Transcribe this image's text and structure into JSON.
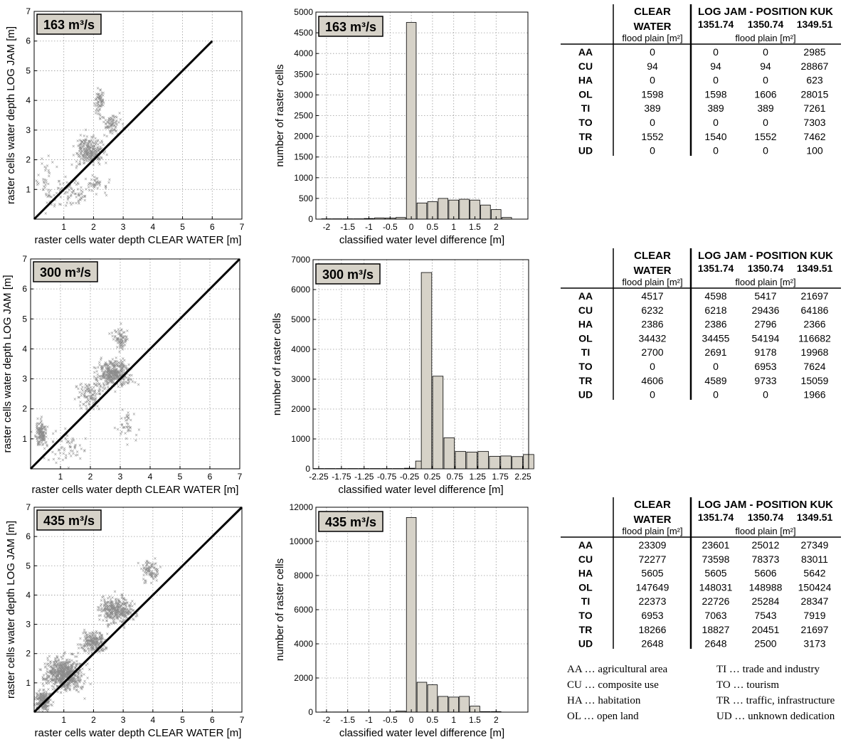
{
  "panels": [
    {
      "flow_label": "163 m³/s",
      "scatter": {
        "type": "scatter",
        "xlabel": "raster cells water depth CLEAR WATER [m]",
        "ylabel": "raster cells water depth LOG JAM [m]",
        "xlim": [
          0,
          7
        ],
        "ylim": [
          0,
          7
        ],
        "xticks": [
          "1",
          "2",
          "3",
          "4",
          "5",
          "6",
          "7"
        ],
        "yticks": [
          "1",
          "2",
          "3",
          "4",
          "5",
          "6",
          "7"
        ],
        "identity_line_to": 6,
        "grid": true
      },
      "histogram": {
        "type": "bar",
        "xlabel": "classified water level difference [m]",
        "ylabel": "number of raster cells",
        "xlim": [
          -2.25,
          2.75
        ],
        "ylim": [
          0,
          5000
        ],
        "yticks": [
          0,
          500,
          1000,
          1500,
          2000,
          2500,
          3000,
          3500,
          4000,
          4500,
          5000
        ],
        "xtick_values": [
          -2,
          -1.5,
          -1,
          -0.5,
          0,
          0.5,
          1,
          1.5,
          2
        ],
        "xtick_labels": [
          "-2",
          "-1.5",
          "-1",
          "-0.5",
          "0",
          "0.5",
          "1",
          "1.5",
          "2"
        ],
        "bin_width": 0.25,
        "bins": [
          {
            "x": -2.0,
            "value": 8
          },
          {
            "x": -1.75,
            "value": 8
          },
          {
            "x": -1.5,
            "value": 8
          },
          {
            "x": -1.25,
            "value": 8
          },
          {
            "x": -1.0,
            "value": 15
          },
          {
            "x": -0.75,
            "value": 30
          },
          {
            "x": -0.5,
            "value": 25
          },
          {
            "x": -0.25,
            "value": 40
          },
          {
            "x": 0.0,
            "value": 4750
          },
          {
            "x": 0.25,
            "value": 390
          },
          {
            "x": 0.5,
            "value": 420
          },
          {
            "x": 0.75,
            "value": 500
          },
          {
            "x": 1.0,
            "value": 460
          },
          {
            "x": 1.25,
            "value": 480
          },
          {
            "x": 1.5,
            "value": 460
          },
          {
            "x": 1.75,
            "value": 340
          },
          {
            "x": 2.0,
            "value": 230
          },
          {
            "x": 2.25,
            "value": 40
          }
        ],
        "grid": true
      },
      "table": {
        "h1a": "CLEAR",
        "h1b": "WATER",
        "h1c": "flood plain [m²]",
        "h2": "LOG JAM - POSITION KUK",
        "positions": [
          "1351.74",
          "1350.74",
          "1349.51"
        ],
        "h2c": "flood plain [m²]",
        "rows": [
          {
            "code": "AA",
            "vals": [
              "0",
              "0",
              "0",
              "2985"
            ]
          },
          {
            "code": "CU",
            "vals": [
              "94",
              "94",
              "94",
              "28867"
            ]
          },
          {
            "code": "HA",
            "vals": [
              "0",
              "0",
              "0",
              "623"
            ]
          },
          {
            "code": "OL",
            "vals": [
              "1598",
              "1598",
              "1606",
              "28015"
            ]
          },
          {
            "code": "TI",
            "vals": [
              "389",
              "389",
              "389",
              "7261"
            ]
          },
          {
            "code": "TO",
            "vals": [
              "0",
              "0",
              "0",
              "7303"
            ]
          },
          {
            "code": "TR",
            "vals": [
              "1552",
              "1540",
              "1552",
              "7462"
            ]
          },
          {
            "code": "UD",
            "vals": [
              "0",
              "0",
              "0",
              "100"
            ]
          }
        ]
      }
    },
    {
      "flow_label": "300 m³/s",
      "scatter": {
        "type": "scatter",
        "xlabel": "raster cells water depth CLEAR WATER [m]",
        "ylabel": "raster cells water depth LOG JAM [m]",
        "xlim": [
          0,
          7
        ],
        "ylim": [
          0,
          7
        ],
        "xticks": [
          "1",
          "2",
          "3",
          "4",
          "5",
          "6",
          "7"
        ],
        "yticks": [
          "1",
          "2",
          "3",
          "4",
          "5",
          "6",
          "7"
        ],
        "identity_line_to": 7,
        "grid": true
      },
      "histogram": {
        "type": "bar",
        "xlabel": "classified water level difference [m]",
        "ylabel": "number of raster cells",
        "xlim": [
          -2.375,
          2.375
        ],
        "ylim": [
          0,
          7000
        ],
        "yticks": [
          0,
          1000,
          2000,
          3000,
          4000,
          5000,
          6000,
          7000
        ],
        "xtick_values": [
          -2.25,
          -1.75,
          -1.25,
          -0.75,
          -0.25,
          0.25,
          0.75,
          1.25,
          1.75,
          2.25
        ],
        "xtick_labels": [
          "-2.25",
          "-1.75",
          "-1.25",
          "-0.75",
          "-0.25",
          "0.25",
          "0.75",
          "1.25",
          "1.75",
          "2.25"
        ],
        "bin_width": 0.25,
        "bins": [
          {
            "x": -2.25,
            "value": 10
          },
          {
            "x": -2.0,
            "value": 10
          },
          {
            "x": -1.75,
            "value": 10
          },
          {
            "x": -1.5,
            "value": 10
          },
          {
            "x": -1.25,
            "value": 10
          },
          {
            "x": -1.0,
            "value": 10
          },
          {
            "x": -0.75,
            "value": 10
          },
          {
            "x": -0.5,
            "value": 10
          },
          {
            "x": -0.25,
            "value": 20
          },
          {
            "x": 0.0,
            "value": 260
          },
          {
            "x": 0.125,
            "value": 6570
          },
          {
            "x": 0.375,
            "value": 3100
          },
          {
            "x": 0.625,
            "value": 1040
          },
          {
            "x": 0.875,
            "value": 580
          },
          {
            "x": 1.125,
            "value": 560
          },
          {
            "x": 1.375,
            "value": 580
          },
          {
            "x": 1.625,
            "value": 420
          },
          {
            "x": 1.875,
            "value": 430
          },
          {
            "x": 2.125,
            "value": 410
          },
          {
            "x": 2.375,
            "value": 480
          }
        ],
        "grid": true
      },
      "table": {
        "h1a": "CLEAR",
        "h1b": "WATER",
        "h1c": "flood plain [m²]",
        "h2": "LOG JAM - POSITION KUK",
        "positions": [
          "1351.74",
          "1350.74",
          "1349.51"
        ],
        "h2c": "flood plain [m²]",
        "rows": [
          {
            "code": "AA",
            "vals": [
              "4517",
              "4598",
              "5417",
              "21697"
            ]
          },
          {
            "code": "CU",
            "vals": [
              "6232",
              "6218",
              "29436",
              "64186"
            ]
          },
          {
            "code": "HA",
            "vals": [
              "2386",
              "2386",
              "2796",
              "2366"
            ]
          },
          {
            "code": "OL",
            "vals": [
              "34432",
              "34455",
              "54194",
              "116682"
            ]
          },
          {
            "code": "TI",
            "vals": [
              "2700",
              "2691",
              "9178",
              "19968"
            ]
          },
          {
            "code": "TO",
            "vals": [
              "0",
              "0",
              "6953",
              "7624"
            ]
          },
          {
            "code": "TR",
            "vals": [
              "4606",
              "4589",
              "9733",
              "15059"
            ]
          },
          {
            "code": "UD",
            "vals": [
              "0",
              "0",
              "0",
              "1966"
            ]
          }
        ]
      }
    },
    {
      "flow_label": "435 m³/s",
      "scatter": {
        "type": "scatter",
        "xlabel": "raster cells water depth CLEAR WATER [m]",
        "ylabel": "raster cells water depth LOG JAM [m]",
        "xlim": [
          0,
          7
        ],
        "ylim": [
          0,
          7
        ],
        "xticks": [
          "1",
          "2",
          "3",
          "4",
          "5",
          "6",
          "7"
        ],
        "yticks": [
          "1",
          "2",
          "3",
          "4",
          "5",
          "6",
          "7"
        ],
        "identity_line_to": 7,
        "grid": true
      },
      "histogram": {
        "type": "bar",
        "xlabel": "classified water level difference [m]",
        "ylabel": "number of raster cells",
        "xlim": [
          -2.25,
          2.75
        ],
        "ylim": [
          0,
          12000
        ],
        "yticks": [
          0,
          2000,
          4000,
          6000,
          8000,
          10000,
          12000
        ],
        "xtick_values": [
          -2,
          -1.5,
          -1,
          -0.5,
          0,
          0.5,
          1,
          1.5,
          2
        ],
        "xtick_labels": [
          "-2",
          "-1.5",
          "-1",
          "-0.5",
          "0",
          "0.5",
          "1",
          "1.5",
          "2"
        ],
        "bin_width": 0.25,
        "bins": [
          {
            "x": -2.0,
            "value": 10
          },
          {
            "x": -1.75,
            "value": 10
          },
          {
            "x": -1.5,
            "value": 10
          },
          {
            "x": -1.25,
            "value": 10
          },
          {
            "x": -1.0,
            "value": 10
          },
          {
            "x": -0.75,
            "value": 10
          },
          {
            "x": -0.5,
            "value": 10
          },
          {
            "x": -0.25,
            "value": 60
          },
          {
            "x": 0.0,
            "value": 11400
          },
          {
            "x": 0.25,
            "value": 1750
          },
          {
            "x": 0.5,
            "value": 1600
          },
          {
            "x": 0.75,
            "value": 920
          },
          {
            "x": 1.0,
            "value": 880
          },
          {
            "x": 1.25,
            "value": 920
          },
          {
            "x": 1.5,
            "value": 350
          },
          {
            "x": 1.75,
            "value": 30
          },
          {
            "x": 2.0,
            "value": 30
          }
        ],
        "grid": true
      },
      "table": {
        "h1a": "CLEAR",
        "h1b": "WATER",
        "h1c": "flood plain [m²]",
        "h2": "LOG JAM - POSITION KUK",
        "positions": [
          "1351.74",
          "1350.74",
          "1349.51"
        ],
        "h2c": "flood plain [m²]",
        "rows": [
          {
            "code": "AA",
            "vals": [
              "23309",
              "23601",
              "25012",
              "27349"
            ]
          },
          {
            "code": "CU",
            "vals": [
              "72277",
              "73598",
              "78373",
              "83011"
            ]
          },
          {
            "code": "HA",
            "vals": [
              "5605",
              "5605",
              "5606",
              "5642"
            ]
          },
          {
            "code": "OL",
            "vals": [
              "147649",
              "148031",
              "148988",
              "150424"
            ]
          },
          {
            "code": "TI",
            "vals": [
              "22373",
              "22726",
              "25284",
              "28347"
            ]
          },
          {
            "code": "TO",
            "vals": [
              "6953",
              "7063",
              "7543",
              "7919"
            ]
          },
          {
            "code": "TR",
            "vals": [
              "18266",
              "18827",
              "20451",
              "21697"
            ]
          },
          {
            "code": "UD",
            "vals": [
              "2648",
              "2648",
              "2500",
              "3173"
            ]
          }
        ]
      }
    }
  ],
  "legend": {
    "left": [
      "AA … agricultural area",
      "CU … composite use",
      "HA … habitation",
      "OL … open land"
    ],
    "right": [
      "TI … trade and industry",
      "TO … tourism",
      "TR … traffic, infrastructure",
      "UD … unknown dedication"
    ]
  },
  "colors": {
    "bar_fill": "#d6d2c8",
    "point": "#8c8c8c",
    "badge_fill": "#d6d2c8",
    "line": "#000000",
    "grid": "#9a9a9a"
  }
}
